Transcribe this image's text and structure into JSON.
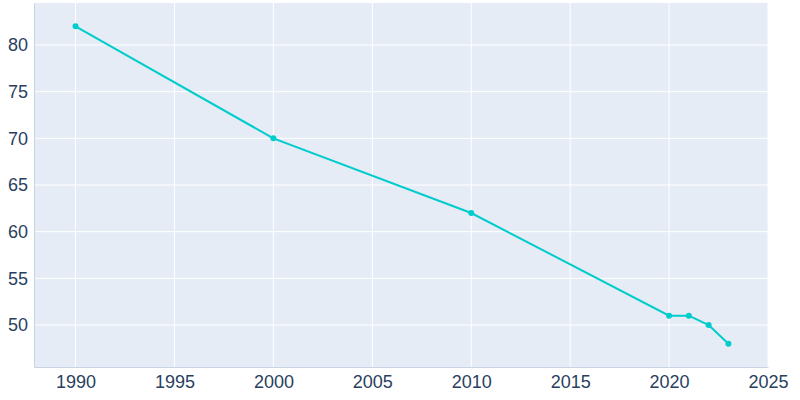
{
  "chart_data": {
    "type": "line",
    "x": [
      1990,
      2000,
      2010,
      2020,
      2021,
      2022,
      2023
    ],
    "values": [
      82,
      70,
      62,
      51,
      51,
      50,
      48
    ],
    "color": "#00cccc",
    "marker": "circle",
    "xlim": [
      1987.9,
      2025
    ],
    "xticks": [
      1990,
      1995,
      2000,
      2005,
      2010,
      2015,
      2020,
      2025
    ],
    "ylim": [
      45.5,
      84.5
    ],
    "yticks": [
      50,
      55,
      60,
      65,
      70,
      75,
      80
    ],
    "grid": true
  }
}
